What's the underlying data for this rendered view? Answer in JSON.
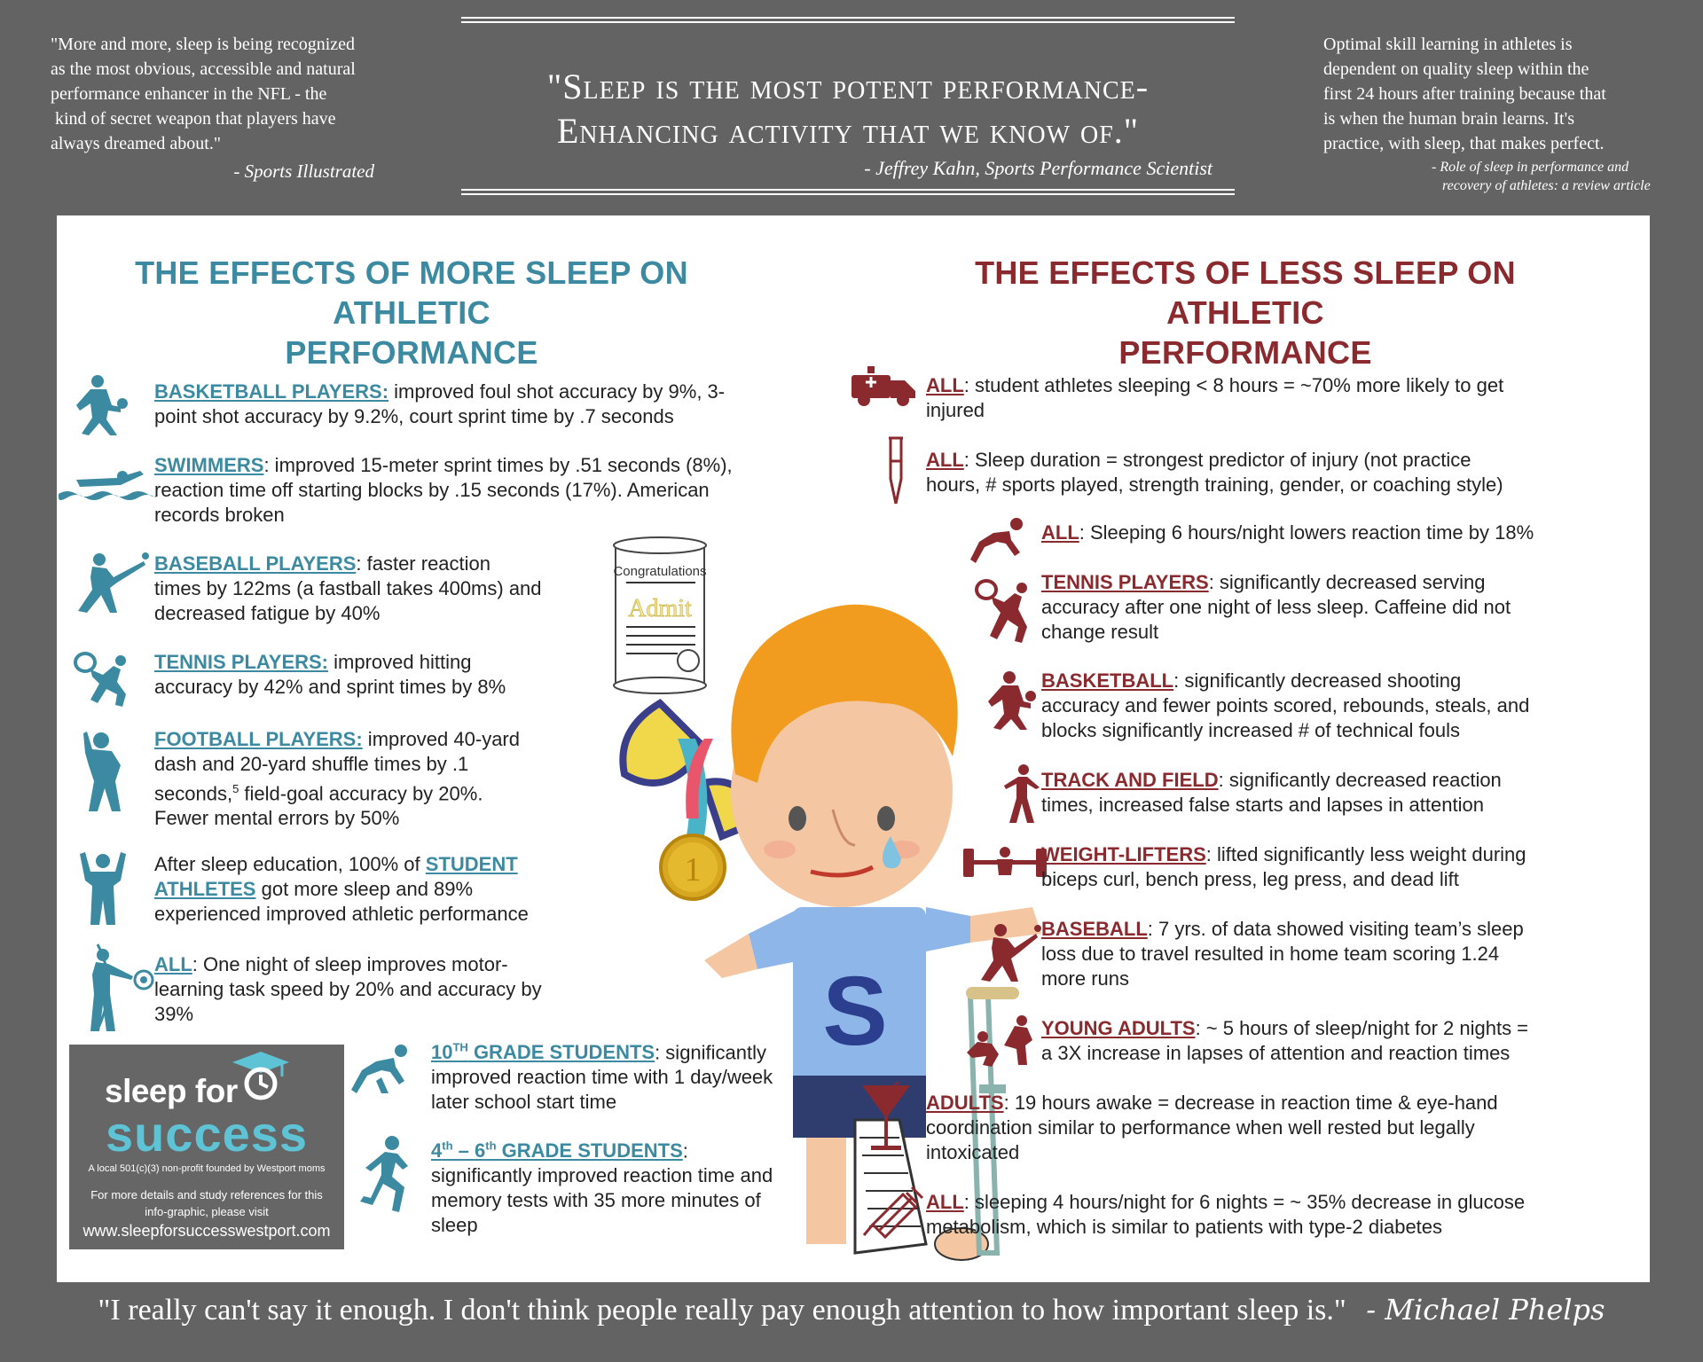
{
  "header": {
    "left_quote": [
      "\"More and more, sleep is being recognized",
      "as the most obvious, accessible and natural",
      "performance enhancer in the NFL - the",
      " kind of secret weapon that players have",
      "always dreamed about.\""
    ],
    "left_attribution": "- Sports Illustrated",
    "main_quote": [
      "\"Sleep is the most potent performance-",
      "Enhancing activity that we know of.\""
    ],
    "main_attribution": "- Jeffrey Kahn, Sports Performance Scientist",
    "right_quote": [
      "Optimal skill learning in athletes is",
      "dependent on quality sleep within the",
      "first 24 hours after training because that",
      "is when the human brain learns.  It's",
      "practice, with sleep, that makes perfect."
    ],
    "right_attribution": [
      "- Role of sleep in performance and",
      "recovery of athletes: a review article"
    ]
  },
  "more_sleep": {
    "heading": [
      "THE EFFECTS OF MORE SLEEP ON ATHLETIC",
      "PERFORMANCE"
    ],
    "items": [
      {
        "label": "BASKETBALL PLAYERS:",
        "lines": [
          " improved foul shot accuracy by 9%, 3-",
          "point shot accuracy by 9.2%, court sprint time by .7 seconds"
        ]
      },
      {
        "label": "SWIMMERS",
        "lines": [
          ": improved 15-meter sprint times by .51 seconds (8%),",
          "reaction time off starting blocks by .15 seconds (17%).  American",
          "records broken"
        ]
      },
      {
        "label": "BASEBALL PLAYERS",
        "lines": [
          ": faster reaction",
          "times by 122ms (a fastball takes 400ms) and",
          "decreased fatigue by 40%"
        ]
      },
      {
        "label": "TENNIS PLAYERS:",
        "lines": [
          " improved hitting",
          "accuracy by 42% and sprint times by 8%"
        ]
      },
      {
        "label": "FOOTBALL PLAYERS:",
        "lines": [
          " improved 40-yard",
          "dash and 20-yard shuffle times by .1",
          "seconds,",
          " field-goal accuracy by 20%.",
          "Fewer mental errors by 50%"
        ],
        "sup": "5"
      },
      {
        "pre": "After sleep education, 100% of ",
        "label": "STUDENT",
        "label2": "ATHLETES",
        "lines": [
          " got more sleep and 89%",
          "experienced improved athletic performance"
        ]
      },
      {
        "label": "ALL",
        "lines": [
          ":  One night of sleep improves motor-",
          "learning task speed by 20% and accuracy by",
          "39%"
        ]
      },
      {
        "label": "10",
        "label_sup": "TH",
        "label_rest": " GRADE STUDENTS",
        "lines": [
          ": significantly",
          "improved reaction time with 1 day/week",
          "later school start time"
        ]
      },
      {
        "label": "4",
        "label_sup": "th",
        "label_mid": " – 6",
        "label_sup2": "th",
        "label_rest": " GRADE STUDENTS",
        "lines": [
          ":",
          "significantly improved reaction time and",
          "memory tests with 35 more minutes of",
          "sleep"
        ]
      }
    ]
  },
  "less_sleep": {
    "heading": [
      "THE EFFECTS OF LESS SLEEP ON ATHLETIC",
      "PERFORMANCE"
    ],
    "items": [
      {
        "label": "ALL",
        "lines": [
          ": student athletes sleeping < 8 hours = ~70% more likely to get",
          "injured"
        ]
      },
      {
        "label": "ALL",
        "lines": [
          ":  Sleep duration = strongest predictor of injury (not practice",
          "hours, # sports played, strength training, gender, or coaching style)"
        ]
      },
      {
        "label": "ALL",
        "lines": [
          ":  Sleeping 6 hours/night lowers reaction time by 18%"
        ]
      },
      {
        "label": "TENNIS PLAYERS",
        "lines": [
          ": significantly decreased serving",
          "accuracy after one night of less sleep.  Caffeine did not",
          "change result"
        ]
      },
      {
        "label": "BASKETBALL",
        "lines": [
          ":  significantly decreased shooting",
          "accuracy and fewer points scored, rebounds, steals, and",
          "blocks significantly increased # of technical fouls"
        ]
      },
      {
        "label": "TRACK AND FIELD",
        "lines": [
          ": significantly decreased reaction",
          "times, increased false starts and lapses in attention"
        ]
      },
      {
        "label": "WEIGHT-LIFTERS",
        "lines": [
          ": lifted significantly less weight during",
          "biceps curl, bench press, leg press, and dead lift"
        ]
      },
      {
        "label": "BASEBALL",
        "lines": [
          ": 7 yrs. of data showed visiting team’s sleep",
          "loss due to travel resulted in home team scoring 1.24",
          "more runs"
        ]
      },
      {
        "label": "YOUNG ADULTS",
        "lines": [
          ": ~ 5 hours of sleep/night for 2 nights =",
          "a 3X increase in lapses of attention and reaction times"
        ]
      },
      {
        "label": "ADULTS",
        "lines": [
          ":  19 hours awake = decrease in reaction time & eye-hand",
          "coordination similar to performance when well rested but legally",
          "intoxicated"
        ]
      },
      {
        "label": "ALL",
        "lines": [
          ": sleeping 4 hours/night for 6 nights = ~ 35% decrease in glucose",
          "metabolism, which is similar to patients with type-2 diabetes"
        ]
      }
    ]
  },
  "logo": {
    "line1": "sleep for",
    "line2": "success",
    "tagline": "A local 501(c)(3) non-profit founded by Westport moms",
    "info": [
      "For more details and study references for this",
      "info-graphic, please visit"
    ],
    "url": "www.sleepforsuccesswestport.com"
  },
  "illustration": {
    "scroll_title": "Congratulations",
    "scroll_word": "Admit",
    "medal_number": "1",
    "shirt_letter": "S"
  },
  "footer": {
    "quote": "\"I really can't say it enough.  I don't think people really pay enough attention to how important sleep is.\"",
    "attribution": "- Michael Phelps"
  },
  "colors": {
    "background": "#636363",
    "teal": "#3b8aa1",
    "maroon": "#8a2a2e",
    "panel": "#ffffff"
  }
}
